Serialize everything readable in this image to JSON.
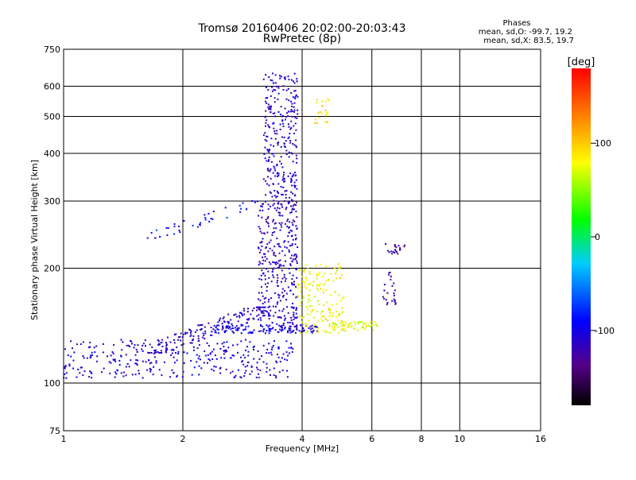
{
  "chart_data": {
    "type": "scatter",
    "title": "Tromsø 20160406 20:02:00-20:03:43",
    "subtitle": "RwPretec (8p)",
    "xlabel": "Frequency [MHz]",
    "ylabel": "Stationary phase Virtual Height [km]",
    "x_scale": "log",
    "y_scale": "log",
    "xlim": [
      1,
      16
    ],
    "ylim": [
      75,
      750
    ],
    "x_ticks": [
      1,
      2,
      4,
      6,
      8,
      10,
      16
    ],
    "y_ticks": [
      75,
      100,
      200,
      300,
      400,
      500,
      600,
      750
    ],
    "x_grid": [
      2,
      4,
      6,
      8,
      10
    ],
    "y_grid": [
      100,
      200,
      300,
      400,
      500,
      600
    ],
    "grid": true,
    "legend": {
      "title": "Phases",
      "lines": [
        "mean, sd,O: -99.7, 19.2",
        "mean, sd,X: 83.5, 19.7"
      ]
    },
    "colorbar": {
      "label": "[deg]",
      "range": [
        -180,
        180
      ],
      "ticks": [
        100,
        0,
        -100
      ],
      "placement": "right"
    },
    "point_groups": [
      {
        "desc": "E/F low-band trace (O-mode)",
        "x_range": [
          1.0,
          3.8
        ],
        "y_range": [
          103,
          130
        ],
        "phase": -105,
        "count": 320
      },
      {
        "desc": "rising trace",
        "x_range": [
          1.6,
          3.3
        ],
        "y_range": [
          120,
          158
        ],
        "phase": -110,
        "count": 160
      },
      {
        "desc": "horizontal F trace",
        "x_range": [
          2.4,
          4.4
        ],
        "y_range": [
          135,
          142
        ],
        "phase": -100,
        "count": 120
      },
      {
        "desc": "F1 cusp vertical",
        "x_range": [
          3.1,
          3.9
        ],
        "y_range": [
          140,
          300
        ],
        "phase": -115,
        "count": 340
      },
      {
        "desc": "oblique branch",
        "x_range": [
          1.6,
          3.2
        ],
        "y_range": [
          240,
          300
        ],
        "phase": -90,
        "count": 40
      },
      {
        "desc": "F2 vertical",
        "x_range": [
          3.2,
          3.9
        ],
        "y_range": [
          300,
          650
        ],
        "phase": -110,
        "count": 270
      },
      {
        "desc": "X-mode cluster",
        "x_range": [
          3.9,
          5.1
        ],
        "y_range": [
          135,
          205
        ],
        "phase": 80,
        "count": 170
      },
      {
        "desc": "X-mode lower",
        "x_range": [
          4.7,
          6.2
        ],
        "y_range": [
          137,
          145
        ],
        "phase": 75,
        "count": 60
      },
      {
        "desc": "X-mode top",
        "x_range": [
          4.3,
          4.7
        ],
        "y_range": [
          480,
          560
        ],
        "phase": 90,
        "count": 25
      },
      {
        "desc": "blob at 6.7",
        "x_range": [
          6.4,
          6.9
        ],
        "y_range": [
          160,
          195
        ],
        "phase": -125,
        "count": 25
      },
      {
        "desc": "cluster near 230 km",
        "x_range": [
          6.5,
          7.3
        ],
        "y_range": [
          218,
          232
        ],
        "phase": -120,
        "count": 20
      }
    ]
  }
}
